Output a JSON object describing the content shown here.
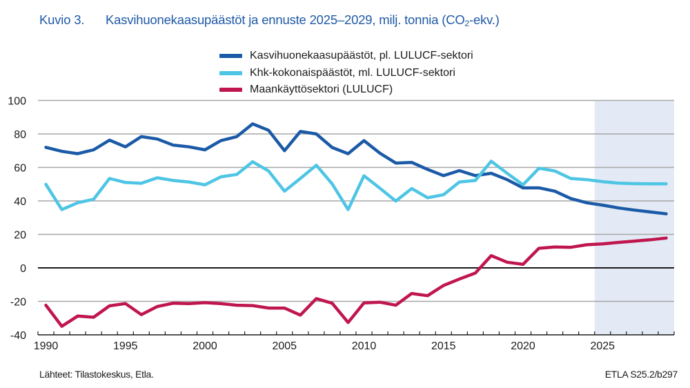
{
  "header": {
    "figure_number": "Kuvio 3.",
    "title_main": "Kasvihuonekaasupäästöt ja ennuste 2025–2029, milj. tonnia (CO",
    "title_sub": "2",
    "title_end": "-ekv.)"
  },
  "footer": {
    "source": "Lähteet: Tilastokeskus, Etla.",
    "code": "ETLA S25.2/b297"
  },
  "chart_data": {
    "type": "line",
    "title": "Kasvihuonekaasupäästöt ja ennuste 2025–2029, milj. tonnia (CO2-ekv.)",
    "xlabel": "",
    "ylabel": "",
    "ylim": [
      -40,
      100
    ],
    "yticks": [
      100,
      80,
      60,
      40,
      20,
      0,
      -20,
      -40
    ],
    "ytick_labels": [
      "100",
      "80",
      "60",
      "40",
      "20",
      "0",
      "-20",
      "-40"
    ],
    "xticks_labeled": [
      1990,
      1995,
      2000,
      2005,
      2010,
      2015,
      2020,
      2025
    ],
    "xtick_labels": [
      "1990",
      "1995",
      "2000",
      "2005",
      "2010",
      "2015",
      "2020",
      "2025"
    ],
    "grid": true,
    "legend_position": "top-center",
    "forecast_shading": {
      "from": 2025,
      "to": 2029,
      "color": "#e3eaf5"
    },
    "x": [
      1990,
      1991,
      1992,
      1993,
      1994,
      1995,
      1996,
      1997,
      1998,
      1999,
      2000,
      2001,
      2002,
      2003,
      2004,
      2005,
      2006,
      2007,
      2008,
      2009,
      2010,
      2011,
      2012,
      2013,
      2014,
      2015,
      2016,
      2017,
      2018,
      2019,
      2020,
      2021,
      2022,
      2023,
      2024,
      2025,
      2026,
      2027,
      2028,
      2029
    ],
    "series": [
      {
        "name": "Kasvihuonekaasupäästöt, pl. LULUCF-sektori",
        "color": "#1b5aa7",
        "values": [
          72,
          69.6,
          68.2,
          70.5,
          76.3,
          72.3,
          78.4,
          77,
          73.3,
          72.3,
          70.5,
          76,
          78.4,
          86,
          82.2,
          70,
          81.5,
          80,
          71.9,
          68.2,
          76,
          68.5,
          62.6,
          63,
          58.8,
          55.1,
          58.1,
          55.1,
          56.5,
          52.7,
          47.8,
          47.8,
          45.8,
          41.4,
          38.9,
          37.5,
          35.8,
          34.5,
          33.4,
          32.3
        ]
      },
      {
        "name": "Khk-kokonaispäästöt, ml. LULUCF-sektori",
        "color": "#4ec5e4",
        "values": [
          49.9,
          34.8,
          38.9,
          41,
          53.4,
          51,
          50.5,
          53.8,
          52.2,
          51.3,
          49.6,
          54.4,
          55.8,
          63.4,
          57.9,
          45.8,
          53.4,
          61.3,
          50.2,
          34.8,
          55,
          47.6,
          39.9,
          47.4,
          41.9,
          43.7,
          51.3,
          52.2,
          63.7,
          56.5,
          49.6,
          59.5,
          57.9,
          53.4,
          52.7,
          51.5,
          50.6,
          50.3,
          50.2,
          50.2
        ]
      },
      {
        "name": "Maankäyttösektori (LULUCF)",
        "color": "#c0164f",
        "values": [
          -22.3,
          -34.9,
          -28.8,
          -29.5,
          -22.7,
          -21.3,
          -27.9,
          -23.1,
          -21.1,
          -21.3,
          -20.8,
          -21.3,
          -22.3,
          -22.5,
          -24,
          -24,
          -28.2,
          -18.4,
          -21.1,
          -32.6,
          -20.9,
          -20.5,
          -22.3,
          -15.3,
          -16.6,
          -10.5,
          -6.7,
          -3.1,
          7.3,
          3.4,
          2.1,
          11.7,
          12.5,
          12.3,
          13.8,
          14.3,
          15.2,
          16,
          16.8,
          17.8
        ]
      }
    ]
  }
}
